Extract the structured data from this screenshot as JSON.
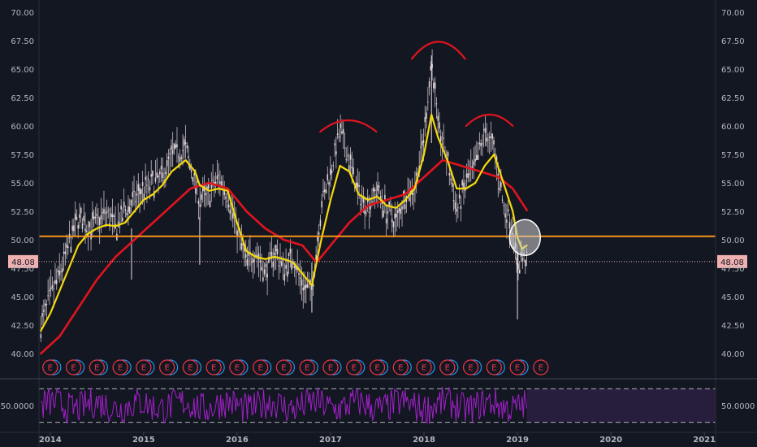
{
  "colors": {
    "background": "#131722",
    "axis_text": "#b2b5be",
    "candles": "#e8dbe0",
    "ma_fast": "#f5d90a",
    "ma_slow": "#e0141e",
    "support_line": "#f7931a",
    "price_marker": "#f0b0b0",
    "pattern_arcs": "#e0141e",
    "earnings": "#f23645",
    "dividends": "#2196f3",
    "oscillator": "#a020c8",
    "oscillator_band": "#2a1e3f",
    "dashed_levels": "#d1d4dc",
    "highlight_circle": "#cfcfcf"
  },
  "chart_data": {
    "type": "line",
    "yaxis": {
      "ticks": [
        "70.00",
        "67.50",
        "65.00",
        "62.50",
        "60.00",
        "57.50",
        "55.00",
        "52.50",
        "50.00",
        "47.50",
        "45.00",
        "42.50",
        "40.00"
      ],
      "ylim": [
        38.5,
        71.0
      ]
    },
    "xaxis": {
      "ticks": [
        "2014",
        "2015",
        "2016",
        "2017",
        "2018",
        "2019",
        "2020",
        "2021"
      ],
      "xlim": [
        2013.88,
        2021.12
      ]
    },
    "grid": false,
    "current_price": {
      "label": "48.08",
      "value": 48.08
    },
    "support_level": 50.3,
    "price_series": {
      "x": [
        2013.9,
        2014.0,
        2014.1,
        2014.2,
        2014.3,
        2014.4,
        2014.5,
        2014.6,
        2014.7,
        2014.8,
        2014.9,
        2015.0,
        2015.1,
        2015.2,
        2015.3,
        2015.45,
        2015.55,
        2015.6,
        2015.7,
        2015.8,
        2015.9,
        2016.0,
        2016.1,
        2016.2,
        2016.3,
        2016.4,
        2016.5,
        2016.6,
        2016.7,
        2016.8,
        2016.9,
        2017.0,
        2017.1,
        2017.2,
        2017.3,
        2017.4,
        2017.5,
        2017.6,
        2017.7,
        2017.8,
        2017.9,
        2018.0,
        2018.08,
        2018.15,
        2018.25,
        2018.35,
        2018.45,
        2018.55,
        2018.65,
        2018.75,
        2018.85,
        2018.95,
        2019.0,
        2019.05,
        2019.1
      ],
      "values": [
        42.5,
        45.0,
        47.0,
        49.5,
        52.0,
        51.0,
        51.5,
        52.5,
        51.0,
        52.5,
        53.5,
        54.5,
        55.0,
        55.5,
        57.5,
        58.0,
        55.0,
        53.5,
        54.0,
        55.5,
        54.0,
        51.0,
        48.0,
        49.0,
        47.0,
        49.0,
        47.5,
        48.5,
        46.0,
        45.5,
        53.0,
        56.0,
        59.5,
        57.0,
        54.0,
        53.0,
        54.5,
        52.5,
        51.5,
        54.0,
        54.5,
        59.0,
        66.0,
        60.0,
        57.0,
        52.5,
        55.0,
        56.5,
        59.5,
        58.0,
        53.0,
        51.0,
        47.5,
        48.5,
        48.08
      ]
    },
    "series": [
      {
        "x": [
          2013.9,
          2014.0,
          2014.1,
          2014.2,
          2014.3,
          2014.4,
          2014.5,
          2014.6,
          2014.7,
          2014.8,
          2014.9,
          2015.0,
          2015.1,
          2015.2,
          2015.3,
          2015.45,
          2015.55,
          2015.6,
          2015.7,
          2015.8,
          2015.9,
          2016.0,
          2016.1,
          2016.2,
          2016.3,
          2016.4,
          2016.5,
          2016.6,
          2016.7,
          2016.8,
          2016.9,
          2017.0,
          2017.1,
          2017.2,
          2017.3,
          2017.4,
          2017.5,
          2017.6,
          2017.7,
          2017.8,
          2017.9,
          2018.0,
          2018.08,
          2018.15,
          2018.25,
          2018.35,
          2018.45,
          2018.55,
          2018.65,
          2018.75,
          2018.85,
          2018.95,
          2019.0,
          2019.05,
          2019.1
        ],
        "values": [
          42.0,
          43.5,
          45.5,
          47.5,
          49.5,
          50.5,
          51.0,
          51.3,
          51.2,
          51.5,
          52.5,
          53.5,
          54.0,
          54.8,
          56.0,
          57.0,
          56.0,
          54.8,
          54.3,
          54.5,
          54.3,
          51.5,
          49.0,
          48.5,
          48.3,
          48.5,
          48.3,
          48.0,
          47.0,
          46.0,
          50.0,
          53.5,
          56.5,
          56.0,
          54.0,
          53.5,
          53.8,
          53.0,
          52.8,
          53.5,
          54.5,
          57.5,
          61.0,
          59.0,
          57.0,
          54.5,
          54.5,
          55.0,
          56.5,
          57.5,
          55.0,
          52.5,
          50.2,
          49.2,
          49.5
        ]
      },
      {
        "x": [
          2013.9,
          2014.1,
          2014.3,
          2014.5,
          2014.7,
          2014.9,
          2015.1,
          2015.3,
          2015.5,
          2015.7,
          2015.9,
          2016.1,
          2016.3,
          2016.5,
          2016.7,
          2016.85,
          2017.0,
          2017.2,
          2017.4,
          2017.6,
          2017.8,
          2018.0,
          2018.2,
          2018.4,
          2018.6,
          2018.8,
          2018.95,
          2019.1
        ],
        "values": [
          40.0,
          41.5,
          44.0,
          46.5,
          48.5,
          50.0,
          51.5,
          53.0,
          54.5,
          55.0,
          54.5,
          52.5,
          51.0,
          50.0,
          49.5,
          48.0,
          49.5,
          51.5,
          53.0,
          53.5,
          54.0,
          55.5,
          57.0,
          56.5,
          56.0,
          55.5,
          54.5,
          52.6
        ]
      }
    ],
    "pattern_arcs": [
      {
        "x_start": 2016.89,
        "x_end": 2017.49,
        "y_base": 59.5,
        "y_peak": 60.5
      },
      {
        "x_start": 2017.87,
        "x_end": 2018.44,
        "y_base": 65.9,
        "y_peak": 67.4
      },
      {
        "x_start": 2018.45,
        "x_end": 2018.95,
        "y_base": 60.0,
        "y_peak": 61.0
      }
    ],
    "highlight": {
      "x": 2019.08,
      "y": 50.2
    },
    "earnings_markers": {
      "label": "E",
      "x": [
        2014.0,
        2014.25,
        2014.5,
        2014.75,
        2015.0,
        2015.25,
        2015.5,
        2015.75,
        2016.0,
        2016.25,
        2016.5,
        2016.75,
        2017.0,
        2017.25,
        2017.5,
        2017.75,
        2018.0,
        2018.25,
        2018.5,
        2018.75,
        2019.0,
        2019.25
      ]
    },
    "oscillator": {
      "label": "50.0000",
      "value": 50.0,
      "upper": 70,
      "lower": 30,
      "ylim": [
        20,
        80
      ]
    }
  }
}
